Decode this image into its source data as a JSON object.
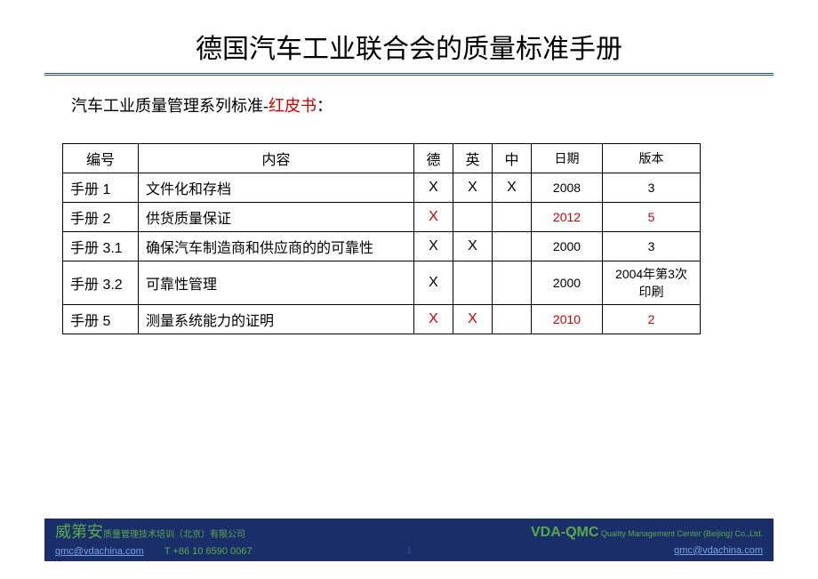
{
  "title": "德国汽车工业联合会的质量标准手册",
  "subtitle_prefix": "汽车工业质量管理系列标准-",
  "subtitle_red": "红皮书",
  "subtitle_suffix": "：",
  "table": {
    "headers": {
      "id": "编号",
      "content": "内容",
      "de": "德",
      "en": "英",
      "cn": "中",
      "date": "日期",
      "ver": "版本"
    },
    "rows": [
      {
        "id": "手册 1",
        "content": "文件化和存档",
        "de": "X",
        "en": "X",
        "cn": "X",
        "date": "2008",
        "ver": "3",
        "de_red": false,
        "en_red": false,
        "cn_red": false,
        "date_red": false,
        "ver_red": false
      },
      {
        "id": "手册 2",
        "content": "供货质量保证",
        "de": "X",
        "en": "",
        "cn": "",
        "date": "2012",
        "ver": "5",
        "de_red": true,
        "en_red": false,
        "cn_red": false,
        "date_red": true,
        "ver_red": true
      },
      {
        "id": "手册 3.1",
        "content": "确保汽车制造商和供应商的的可靠性",
        "de": "X",
        "en": "X",
        "cn": "",
        "date": "2000",
        "ver": "3",
        "de_red": false,
        "en_red": false,
        "cn_red": false,
        "date_red": false,
        "ver_red": false
      },
      {
        "id": "手册 3.2",
        "content": "可靠性管理",
        "de": "X",
        "en": "",
        "cn": "",
        "date": "2000",
        "ver": "2004年第3次印刷",
        "de_red": false,
        "en_red": false,
        "cn_red": false,
        "date_red": false,
        "ver_red": false
      },
      {
        "id": "手册 5",
        "content": "测量系统能力的证明",
        "de": "X",
        "en": "X",
        "cn": "",
        "date": "2010",
        "ver": "2",
        "de_red": true,
        "en_red": true,
        "cn_red": false,
        "date_red": true,
        "ver_red": true
      }
    ]
  },
  "footer": {
    "left_brand": "威第安",
    "left_sub": "质量管理技术培训（北京）有限公司",
    "left_email": "qmc@vdachina.com",
    "left_phone": "T +86 10 6590 0067",
    "page_num": "1",
    "right_brand": "VDA-QMC",
    "right_sub": " Quality Management Center (Beijing) Co.,Ltd.",
    "right_email": "qmc@vdachina.com"
  },
  "colors": {
    "red": "#d00000",
    "footer_bg": "#1a2e6a",
    "green": "#5aa84a",
    "link": "#7aa0e0",
    "rule": "#2a4a9a"
  }
}
